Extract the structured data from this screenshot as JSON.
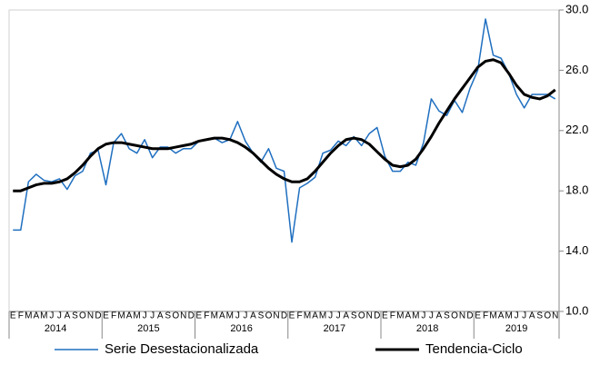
{
  "chart_data": {
    "type": "line",
    "categories": [
      "E",
      "F",
      "M",
      "A",
      "M",
      "J",
      "J",
      "A",
      "S",
      "O",
      "N",
      "D",
      "E",
      "F",
      "M",
      "A",
      "M",
      "J",
      "J",
      "A",
      "S",
      "O",
      "N",
      "D",
      "E",
      "F",
      "M",
      "A",
      "M",
      "J",
      "J",
      "A",
      "S",
      "O",
      "N",
      "D",
      "E",
      "F",
      "M",
      "A",
      "M",
      "J",
      "J",
      "A",
      "S",
      "O",
      "N",
      "D",
      "E",
      "F",
      "M",
      "A",
      "M",
      "J",
      "J",
      "A",
      "S",
      "O",
      "N",
      "D",
      "E",
      "F",
      "M",
      "A",
      "M",
      "J",
      "J",
      "A",
      "S",
      "O",
      "N"
    ],
    "years": [
      "2014",
      "2015",
      "2016",
      "2017",
      "2018",
      "2019"
    ],
    "series": [
      {
        "name": "Serie Desestacionalizada",
        "color": "#1f6fc0",
        "width": 1.5,
        "values": [
          15.4,
          15.4,
          18.6,
          19.1,
          18.7,
          18.6,
          18.8,
          18.1,
          19.0,
          19.3,
          20.5,
          20.7,
          18.4,
          21.2,
          21.8,
          20.8,
          20.5,
          21.4,
          20.2,
          20.9,
          20.9,
          20.5,
          20.8,
          20.8,
          21.3,
          21.4,
          21.5,
          21.2,
          21.4,
          22.6,
          21.3,
          20.5,
          19.9,
          20.8,
          19.5,
          19.3,
          14.6,
          18.2,
          18.5,
          18.9,
          20.5,
          20.7,
          21.3,
          21.0,
          21.6,
          21.0,
          21.8,
          22.2,
          20.3,
          19.3,
          19.3,
          19.9,
          19.7,
          21.2,
          24.1,
          23.3,
          23.0,
          24.0,
          23.2,
          24.8,
          26.0,
          29.4,
          27.0,
          26.8,
          25.8,
          24.4,
          23.5,
          24.4,
          24.4,
          24.4,
          24.1
        ]
      },
      {
        "name": "Tendencia-Ciclo",
        "color": "#000000",
        "width": 3,
        "values": [
          18.0,
          18.0,
          18.2,
          18.4,
          18.5,
          18.5,
          18.6,
          18.8,
          19.2,
          19.7,
          20.3,
          20.8,
          21.1,
          21.2,
          21.2,
          21.1,
          21.0,
          20.9,
          20.8,
          20.8,
          20.8,
          20.9,
          21.0,
          21.1,
          21.3,
          21.4,
          21.5,
          21.5,
          21.4,
          21.2,
          20.9,
          20.5,
          20.0,
          19.5,
          19.1,
          18.8,
          18.6,
          18.6,
          18.8,
          19.3,
          19.9,
          20.5,
          21.0,
          21.4,
          21.5,
          21.4,
          21.1,
          20.6,
          20.1,
          19.7,
          19.6,
          19.7,
          20.1,
          20.8,
          21.6,
          22.5,
          23.3,
          24.1,
          24.8,
          25.5,
          26.2,
          26.6,
          26.7,
          26.5,
          25.8,
          25.0,
          24.4,
          24.2,
          24.1,
          24.3,
          24.7
        ]
      }
    ],
    "ylim": [
      10,
      30
    ],
    "yticks": [
      {
        "value": 10,
        "label": "10.0"
      },
      {
        "value": 14,
        "label": "14.0"
      },
      {
        "value": 18,
        "label": "18.0"
      },
      {
        "value": 22,
        "label": "22.0"
      },
      {
        "value": 26,
        "label": "26.0"
      },
      {
        "value": 30,
        "label": "30.0"
      }
    ],
    "y_axis_side": "right",
    "legend": "bottom"
  }
}
